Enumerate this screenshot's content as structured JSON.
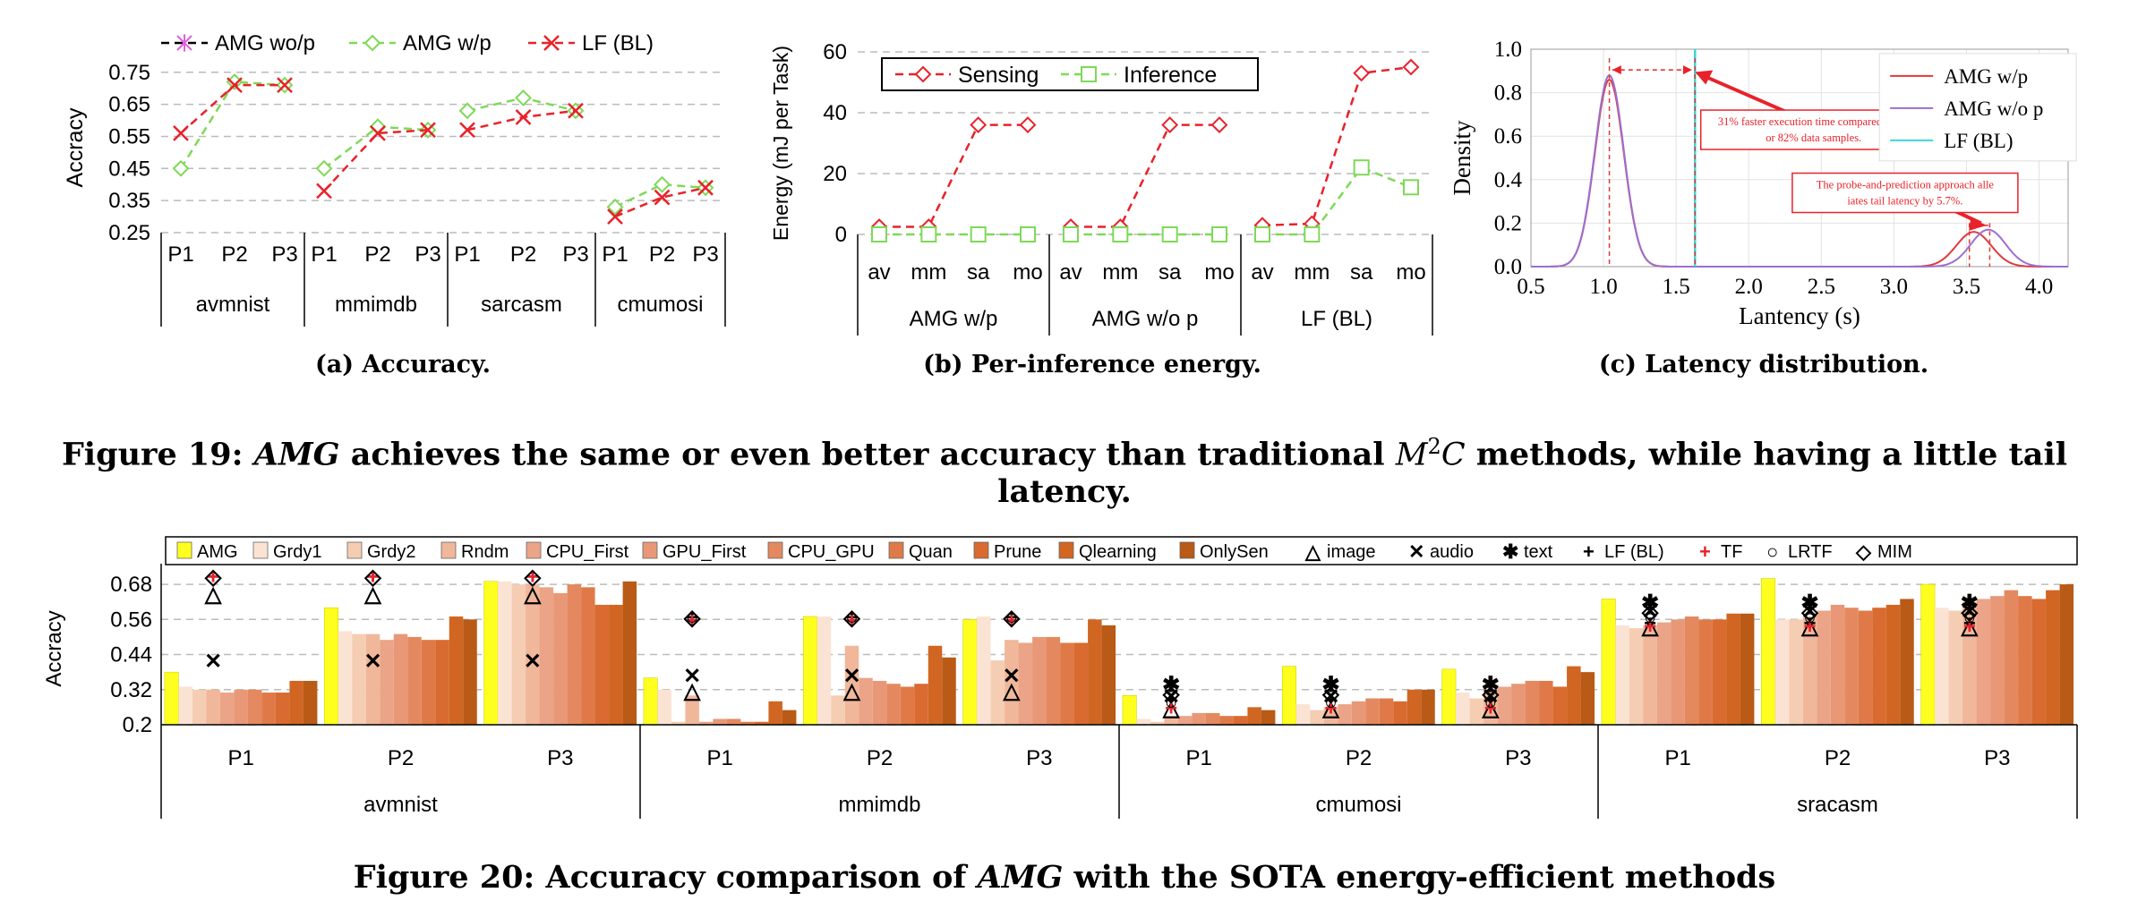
{
  "figure19": {
    "caption_prefix": "Figure 19: ",
    "caption_italic": "AMG",
    "caption_mid": " achieves the same or even better accuracy than traditional ",
    "caption_math": "M",
    "caption_sup": "2",
    "caption_math2": "C",
    "caption_suffix": " methods, while having a little tail latency.",
    "a": {
      "caption": "(a) Accuracy.",
      "chart_data": {
        "type": "line",
        "ylabel": "Accracy",
        "yticks": [
          "0.75",
          "0.65",
          "0.55",
          "0.45",
          "0.35",
          "0.25"
        ],
        "ylim": [
          0.25,
          0.78
        ],
        "groups": [
          "avmnist",
          "mmimdb",
          "sarcasm",
          "cmumosi"
        ],
        "x": [
          "P1",
          "P2",
          "P3"
        ],
        "colors": {
          "AMG wo/p": "#e060e0",
          "AMG w/p": "#7ed957",
          "LF (BL)": "#e8222a"
        },
        "series": [
          {
            "name": "AMG wo/p",
            "values": [
              [
                0.45,
                0.72,
                0.71
              ],
              [
                0.45,
                0.58,
                0.57
              ],
              [
                0.63,
                0.67,
                0.63
              ],
              [
                0.33,
                0.4,
                0.39
              ]
            ]
          },
          {
            "name": "AMG w/p",
            "values": [
              [
                0.45,
                0.72,
                0.71
              ],
              [
                0.45,
                0.58,
                0.57
              ],
              [
                0.63,
                0.67,
                0.63
              ],
              [
                0.33,
                0.4,
                0.39
              ]
            ]
          },
          {
            "name": "LF (BL)",
            "values": [
              [
                0.56,
                0.71,
                0.71
              ],
              [
                0.38,
                0.56,
                0.57
              ],
              [
                0.57,
                0.61,
                0.63
              ],
              [
                0.3,
                0.36,
                0.39
              ]
            ]
          }
        ],
        "legend": "top"
      }
    },
    "b": {
      "caption": "(b) Per-inference energy.",
      "chart_data": {
        "type": "line",
        "ylabel": "Energy (mJ per Task)",
        "yticks": [
          "60",
          "40",
          "20",
          "0"
        ],
        "ylim": [
          0,
          60
        ],
        "groups": [
          "AMG w/p",
          "AMG w/o p",
          "LF (BL)"
        ],
        "x": [
          "av",
          "mm",
          "sa",
          "mo"
        ],
        "colors": {
          "Sensing": "#e8222a",
          "Inference": "#7ed957"
        },
        "series": [
          {
            "name": "Sensing",
            "values": [
              [
                2.5,
                2.5,
                36,
                36
              ],
              [
                2.5,
                2.5,
                36,
                36
              ],
              [
                3,
                3.5,
                53,
                55
              ]
            ]
          },
          {
            "name": "Inference",
            "values": [
              [
                0,
                0,
                0,
                0
              ],
              [
                0,
                0,
                0,
                0
              ],
              [
                0,
                0,
                22,
                15.5
              ]
            ]
          }
        ],
        "legend": "top-left"
      }
    },
    "c": {
      "caption": "(c) Latency distribution.",
      "chart_data": {
        "type": "line",
        "xlabel": "Lantency (s)",
        "ylabel": "Density",
        "xticks": [
          "0.5",
          "1.0",
          "1.5",
          "2.0",
          "2.5",
          "3.0",
          "3.5",
          "4.0"
        ],
        "yticks": [
          "1.0",
          "0.8",
          "0.6",
          "0.4",
          "0.2",
          "0.0"
        ],
        "xlim": [
          0.5,
          4.2
        ],
        "ylim": [
          0,
          1.0
        ],
        "colors": {
          "AMG w/p": "#e03a3a",
          "AMG w/o p": "#9b6fd0",
          "LF (BL)": "#3bd6d6"
        },
        "series": [
          {
            "name": "AMG w/p",
            "peaks": [
              {
                "mu": 1.04,
                "sigma": 0.1,
                "height": 0.86
              },
              {
                "mu": 3.55,
                "sigma": 0.12,
                "height": 0.16
              }
            ]
          },
          {
            "name": "AMG w/o p",
            "peaks": [
              {
                "mu": 1.04,
                "sigma": 0.1,
                "height": 0.88
              },
              {
                "mu": 3.65,
                "sigma": 0.12,
                "height": 0.17
              }
            ]
          },
          {
            "name": "LF (BL)",
            "vline": 1.63
          }
        ],
        "annotations": [
          "31% faster execution time compared to LF for 82% data samples.",
          "The probe-and-prediction approach alleviates tail latency by 5.7%."
        ],
        "legend": "top-right"
      }
    }
  },
  "figure20": {
    "caption_prefix": "Figure 20: Accuracy comparison of ",
    "caption_italic": "AMG",
    "caption_suffix": " with the SOTA energy-efficient methods",
    "chart_data": {
      "type": "bar",
      "ylabel": "Accracy",
      "yticks": [
        "0.68",
        "0.56",
        "0.44",
        "0.32",
        "0.2"
      ],
      "ylim": [
        0.2,
        0.72
      ],
      "groups": [
        "avmnist",
        "mmimdb",
        "cmumosi",
        "sracasm"
      ],
      "x": [
        "P1",
        "P2",
        "P3"
      ],
      "bar_series": [
        "AMG",
        "Grdy1",
        "Grdy2",
        "Rndm",
        "CPU_First",
        "GPU_First",
        "CPU_GPU",
        "Quan",
        "Prune",
        "Qlearning",
        "OnlySen"
      ],
      "bar_colors": [
        "#ffff1f",
        "#fbe3d4",
        "#f5cdb3",
        "#f0b79a",
        "#eba487",
        "#e89877",
        "#e4895f",
        "#df7a48",
        "#d96a30",
        "#d06622",
        "#b95a17"
      ],
      "marker_series": [
        "image",
        "audio",
        "text",
        "LF (BL)",
        "TF",
        "LRTF",
        "MIM"
      ],
      "marker_symbols": [
        "△",
        "✕",
        "✱",
        "+",
        "+",
        "○",
        "◇"
      ],
      "marker_colors": [
        "#000",
        "#000",
        "#000",
        "#000",
        "#e8222a",
        "#000",
        "#000"
      ],
      "bar_values": [
        [
          [
            0.38,
            0.33,
            0.32,
            0.32,
            0.31,
            0.32,
            0.32,
            0.31,
            0.31,
            0.35,
            0.35
          ],
          [
            0.6,
            0.52,
            0.51,
            0.51,
            0.49,
            0.51,
            0.5,
            0.49,
            0.49,
            0.57,
            0.56
          ],
          [
            0.69,
            0.69,
            0.68,
            0.68,
            0.67,
            0.65,
            0.68,
            0.67,
            0.61,
            0.61,
            0.69
          ]
        ],
        [
          [
            0.36,
            0.32,
            0.21,
            0.3,
            0.21,
            0.22,
            0.22,
            0.21,
            0.21,
            0.28,
            0.25
          ],
          [
            0.57,
            0.57,
            0.3,
            0.47,
            0.36,
            0.35,
            0.34,
            0.33,
            0.34,
            0.47,
            0.43
          ],
          [
            0.56,
            0.57,
            0.42,
            0.49,
            0.48,
            0.5,
            0.5,
            0.48,
            0.48,
            0.56,
            0.54
          ]
        ],
        [
          [
            0.3,
            0.22,
            0.21,
            0.23,
            0.23,
            0.24,
            0.24,
            0.23,
            0.23,
            0.26,
            0.25
          ],
          [
            0.4,
            0.27,
            0.25,
            0.26,
            0.27,
            0.28,
            0.29,
            0.29,
            0.28,
            0.32,
            0.32
          ],
          [
            0.39,
            0.31,
            0.29,
            0.32,
            0.33,
            0.34,
            0.35,
            0.35,
            0.33,
            0.4,
            0.38
          ]
        ],
        [
          [
            0.63,
            0.54,
            0.53,
            0.54,
            0.55,
            0.56,
            0.57,
            0.56,
            0.56,
            0.58,
            0.58
          ],
          [
            0.7,
            0.56,
            0.56,
            0.57,
            0.59,
            0.61,
            0.6,
            0.59,
            0.6,
            0.61,
            0.63
          ],
          [
            0.68,
            0.6,
            0.59,
            0.62,
            0.63,
            0.64,
            0.66,
            0.64,
            0.63,
            0.66,
            0.68
          ]
        ]
      ],
      "marker_values": [
        [
          [
            0.65,
            0.42,
            null,
            0.71,
            0.71,
            null,
            0.71
          ],
          [
            0.65,
            0.42,
            null,
            0.71,
            0.71,
            null,
            0.71
          ],
          [
            0.65,
            0.42,
            null,
            0.71,
            0.71,
            null,
            0.71
          ]
        ],
        [
          [
            0.32,
            0.37,
            null,
            0.57,
            0.56,
            0.57,
            0.57
          ],
          [
            0.32,
            0.37,
            null,
            0.57,
            0.56,
            0.57,
            0.57
          ],
          [
            0.32,
            0.37,
            null,
            0.57,
            0.56,
            0.57,
            0.57
          ]
        ],
        [
          [
            0.26,
            0.3,
            0.34,
            0.29,
            0.26,
            0.28,
            0.31
          ],
          [
            0.26,
            0.3,
            0.34,
            0.29,
            0.26,
            0.28,
            0.31
          ],
          [
            0.26,
            0.3,
            0.34,
            0.29,
            0.26,
            0.28,
            0.31
          ]
        ],
        [
          [
            0.54,
            0.59,
            0.62,
            0.55,
            0.54,
            0.57,
            0.59
          ],
          [
            0.54,
            0.59,
            0.62,
            0.55,
            0.54,
            0.57,
            0.59
          ],
          [
            0.54,
            0.59,
            0.62,
            0.55,
            0.54,
            0.57,
            0.59
          ]
        ]
      ],
      "legend": "top"
    }
  }
}
